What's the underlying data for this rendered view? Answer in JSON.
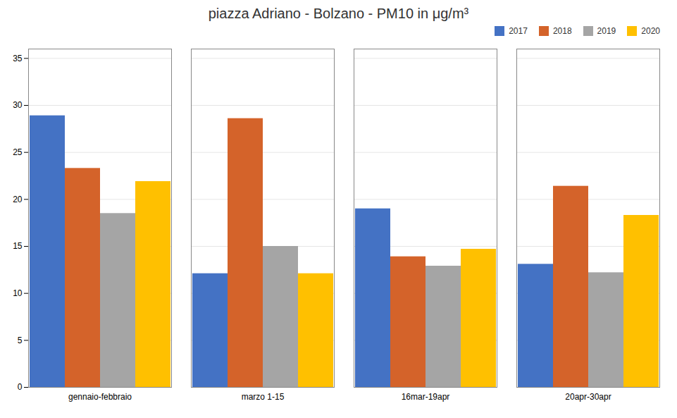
{
  "chart_data": {
    "type": "bar",
    "title": "piazza Adriano - Bolzano - PM10 in μg/m³",
    "categories": [
      "gennaio-febbraio",
      "marzo 1-15",
      "16mar-19apr",
      "20apr-30apr"
    ],
    "series": [
      {
        "name": "2017",
        "color": "#4472C4",
        "values": [
          28.9,
          12.1,
          19.0,
          13.1
        ]
      },
      {
        "name": "2018",
        "color": "#D4632A",
        "values": [
          23.3,
          28.6,
          13.9,
          21.4
        ]
      },
      {
        "name": "2019",
        "color": "#A5A5A5",
        "values": [
          18.5,
          15.0,
          12.9,
          12.2
        ]
      },
      {
        "name": "2020",
        "color": "#FFC000",
        "values": [
          21.9,
          12.1,
          14.7,
          18.3
        ]
      }
    ],
    "ylim": [
      0,
      36
    ],
    "yticks": [
      0,
      5,
      10,
      15,
      20,
      25,
      30,
      35
    ],
    "grid": true,
    "legend": "upper right"
  }
}
